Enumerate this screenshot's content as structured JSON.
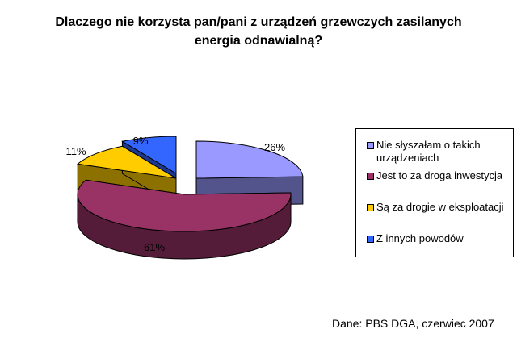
{
  "chart_data": {
    "type": "pie",
    "title": [
      "Dlaczego nie korzysta pan/pani z urządzeń grzewczych zasilanych",
      "energia odnawialną?"
    ],
    "slices": [
      {
        "label": "Nie słyszałam o takich urządzeniach",
        "value": 26,
        "value_label": "26%",
        "color": "#9999ff"
      },
      {
        "label": "Jest to za droga inwestycja",
        "value": 61,
        "value_label": "61%",
        "color": "#993366"
      },
      {
        "label": "Są za drogie w eksploatacji",
        "value": 11,
        "value_label": "11%",
        "color": "#ffcc00"
      },
      {
        "label": "Z innych powodów",
        "value": 9,
        "value_label": "9%",
        "color": "#3366ff"
      }
    ],
    "legend_position": "right",
    "style": "3d-exploded"
  },
  "legend_lines": [
    [
      "Nie słyszałam o takich",
      "urządzeniach"
    ],
    [
      "Jest to za droga inwestycja"
    ],
    [
      "Są za drogie w eksploatacji"
    ],
    [
      "Z innych powodów"
    ]
  ],
  "source": "Dane: PBS DGA, czerwiec 2007"
}
